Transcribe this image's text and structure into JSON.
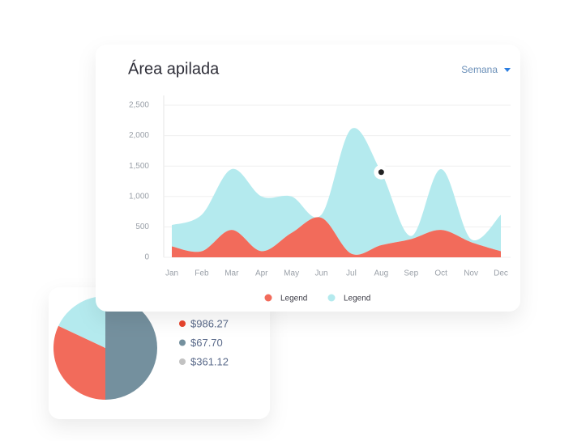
{
  "chart_data": [
    {
      "type": "stacked-area",
      "title": "Área apilada",
      "categories": [
        "Jan",
        "Feb",
        "Mar",
        "Apr",
        "May",
        "Jun",
        "Jul",
        "Aug",
        "Sep",
        "Oct",
        "Nov",
        "Dec"
      ],
      "series": [
        {
          "name": "Legend",
          "color": "#f26b5b",
          "values": [
            180,
            100,
            450,
            100,
            400,
            650,
            60,
            200,
            300,
            450,
            250,
            100
          ]
        },
        {
          "name": "Legend",
          "color": "#b4eaee",
          "values": [
            350,
            600,
            1000,
            900,
            600,
            50,
            2050,
            1200,
            50,
            1000,
            50,
            600
          ]
        }
      ],
      "ylim": [
        0,
        2500
      ],
      "yticks": [
        0,
        500,
        {
          "value": 1000,
          "label": "1,000"
        },
        {
          "value": 1500,
          "label": "1,500"
        },
        {
          "value": 2000,
          "label": "2,000"
        },
        {
          "value": 2500,
          "label": "2,500"
        }
      ],
      "grid": true
    },
    {
      "type": "pie",
      "values": [
        50,
        32,
        18
      ],
      "colors": [
        "#74909e",
        "#f26b5b",
        "#b4eaee"
      ]
    }
  ],
  "period_selector": "Semana",
  "legend_items": [
    {
      "label": "$986.27",
      "color": "#e8452e"
    },
    {
      "label": "$67.70",
      "color": "#74909e"
    },
    {
      "label": "$361.12",
      "color": "#c2c2c2"
    }
  ]
}
